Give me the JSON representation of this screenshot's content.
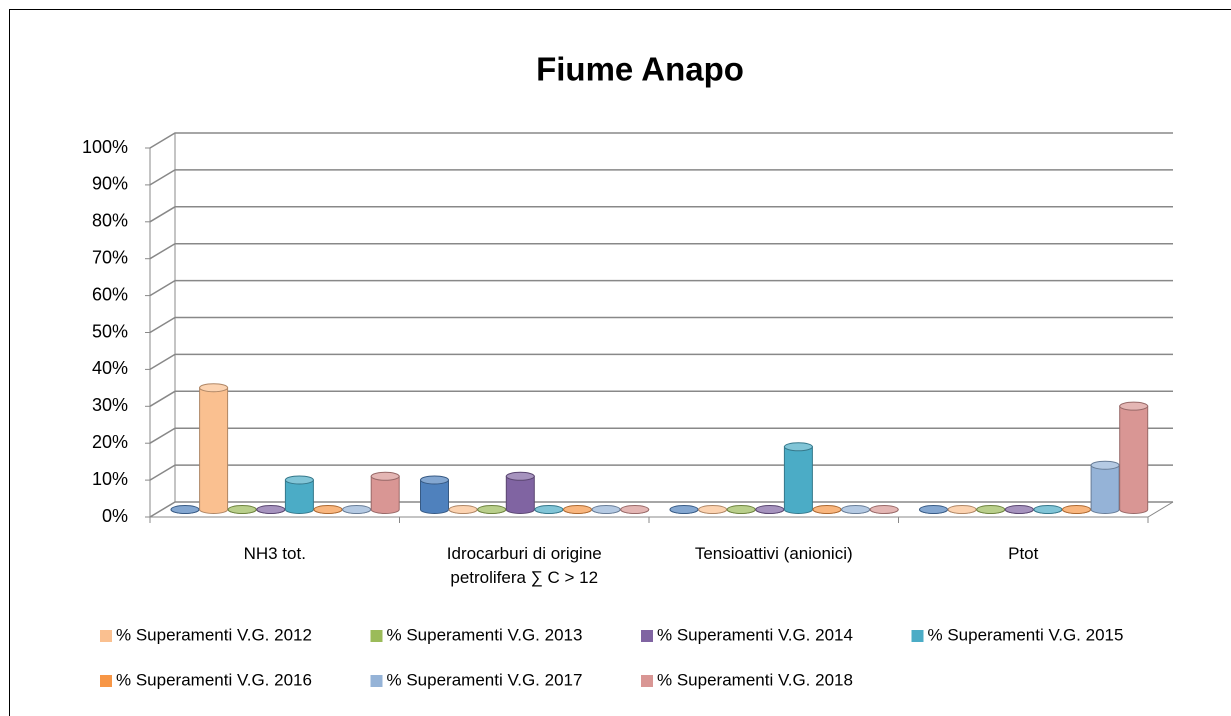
{
  "chart_data": {
    "type": "bar3d",
    "title": "Fiume Anapo",
    "categories": [
      "NH3 tot.",
      "Idrocarburi di origine petrolifera ∑ C > 12",
      "Tensioattivi (anionici)",
      "Ptot"
    ],
    "series": [
      {
        "name": null,
        "color": "#4f81bd",
        "values": [
          0,
          8,
          0,
          0
        ]
      },
      {
        "name": "% Superamenti  V.G. 2012",
        "color": "#fac090",
        "values": [
          33,
          0,
          0,
          0
        ]
      },
      {
        "name": "% Superamenti  V.G. 2013",
        "color": "#9bbb59",
        "values": [
          0,
          0,
          0,
          0
        ]
      },
      {
        "name": "% Superamenti  V.G. 2014",
        "color": "#8064a2",
        "values": [
          0,
          9,
          0,
          0
        ]
      },
      {
        "name": "% Superamenti  V.G. 2015",
        "color": "#4bacc6",
        "values": [
          8,
          0,
          17,
          0
        ]
      },
      {
        "name": "% Superamenti  V.G. 2016",
        "color": "#f79646",
        "values": [
          0,
          0,
          0,
          0
        ]
      },
      {
        "name": "% Superamenti  V.G. 2017",
        "color": "#95b3d7",
        "values": [
          0,
          0,
          0,
          12
        ]
      },
      {
        "name": "% Superamenti  V.G. 2018",
        "color": "#d99694",
        "values": [
          9,
          0,
          0,
          28
        ]
      }
    ],
    "ylim": [
      0,
      100
    ],
    "yticks": [
      {
        "value": 0,
        "label": "0%"
      },
      {
        "value": 10,
        "label": "10%"
      },
      {
        "value": 20,
        "label": "20%"
      },
      {
        "value": 30,
        "label": "30%"
      },
      {
        "value": 40,
        "label": "40%"
      },
      {
        "value": 50,
        "label": "50%"
      },
      {
        "value": 60,
        "label": "60%"
      },
      {
        "value": 70,
        "label": "70%"
      },
      {
        "value": 80,
        "label": "80%"
      },
      {
        "value": 90,
        "label": "90%"
      },
      {
        "value": 100,
        "label": "100%"
      }
    ],
    "grid": true,
    "legend": "bottom"
  }
}
